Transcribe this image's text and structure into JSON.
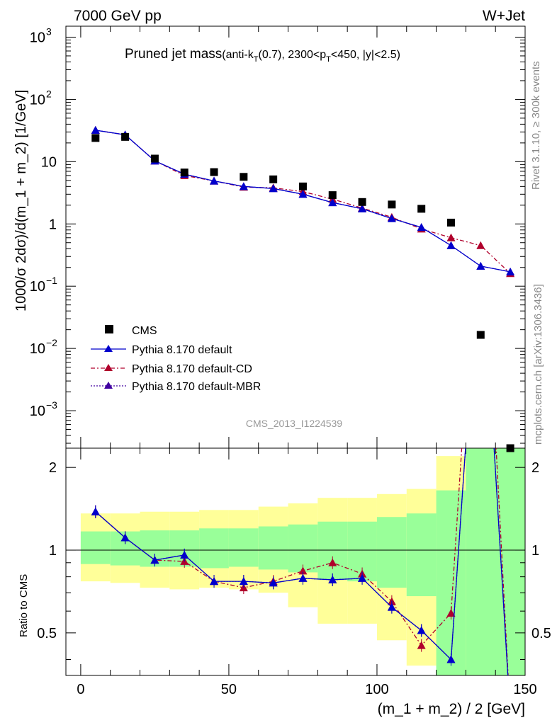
{
  "header": {
    "left": "7000 GeV pp",
    "right": "W+Jet"
  },
  "title": {
    "main": "Pruned jet mass",
    "sub_prefix": "(anti-k",
    "sub_T": "T",
    "sub_mid": "(0.7), 2300<p",
    "sub_T2": "T",
    "sub_suffix": "<450, |y|<2.5)"
  },
  "side_labels": {
    "rivet": "Rivet 3.1.10, ≥ 300k events",
    "mcplots": "mcplots.cern.ch [arXiv:1306.3436]"
  },
  "watermark": "CMS_2013_I1224539",
  "axes": {
    "main_ylabel": "1000/σ 2dσ)/d(m_1 + m_2) [1/GeV]",
    "ratio_ylabel": "Ratio to CMS",
    "xlabel": "(m_1 + m_2) / 2 [GeV]",
    "main_ytick_labels": [
      "10",
      "10",
      "10",
      "10",
      "1",
      "10",
      "10",
      "10"
    ],
    "main_ytick_exps": [
      "3",
      "2",
      "",
      "",
      "",
      "−1",
      "−2",
      "−3"
    ],
    "main_ytick_plain": [
      "",
      "",
      "10",
      "",
      "1",
      "",
      "",
      ""
    ],
    "ratio_ytick_labels": [
      "2",
      "1",
      "0.5"
    ],
    "xtick_labels": [
      "0",
      "50",
      "100",
      "150"
    ]
  },
  "legend": {
    "cms": "CMS",
    "default": "Pythia 8.170 default",
    "cd": "Pythia 8.170 default-CD",
    "mbr": "Pythia 8.170 default-MBR"
  },
  "colors": {
    "default": "#0000cc",
    "cd": "#b0002c",
    "mbr": "#4000a0",
    "band_outer": "#ffff99",
    "band_inner": "#99ff99"
  },
  "chart_data": {
    "type": "line",
    "xlim": [
      -5,
      150
    ],
    "main_ylim": [
      0.00025,
      1500
    ],
    "main_log": true,
    "ratio_ylim": [
      0.35,
      2.35
    ],
    "ratio_log": true,
    "x": [
      5,
      15,
      25,
      35,
      45,
      55,
      65,
      75,
      85,
      95,
      105,
      115,
      125,
      135,
      145
    ],
    "cms": [
      24,
      25,
      11.2,
      6.7,
      6.8,
      5.7,
      5.2,
      4.0,
      2.9,
      2.25,
      2.05,
      1.75,
      1.05,
      0.0165,
      0.00022
    ],
    "series": [
      {
        "name": "Pythia 8.170 default",
        "key": "default",
        "values": [
          32,
          27,
          10.3,
          6.3,
          4.9,
          4.0,
          3.7,
          3.0,
          2.2,
          1.75,
          1.22,
          0.88,
          0.45,
          0.21,
          0.17
        ],
        "ratio": [
          1.38,
          1.11,
          0.92,
          0.96,
          0.77,
          0.77,
          0.76,
          0.79,
          0.78,
          0.79,
          0.62,
          0.51,
          0.4,
          15,
          0.25
        ]
      },
      {
        "name": "Pythia 8.170 default-CD",
        "key": "cd",
        "values": [
          32,
          27,
          10.3,
          6.0,
          4.9,
          3.9,
          3.8,
          3.3,
          2.5,
          1.8,
          1.28,
          0.83,
          0.6,
          0.45,
          0.16
        ],
        "ratio": [
          1.38,
          1.11,
          0.92,
          0.91,
          0.77,
          0.73,
          0.77,
          0.84,
          0.9,
          0.82,
          0.65,
          0.45,
          0.59,
          27,
          0.25
        ]
      },
      {
        "name": "Pythia 8.170 default-MBR",
        "key": "mbr",
        "values": [
          32,
          27,
          10.3,
          6.3,
          4.9,
          4.0,
          3.7,
          3.0,
          2.2,
          1.75,
          1.22,
          0.88,
          0.45,
          0.21,
          0.17
        ],
        "ratio": [
          1.38,
          1.11,
          0.92,
          0.96,
          0.77,
          0.77,
          0.76,
          0.79,
          0.78,
          0.79,
          0.62,
          0.51,
          0.4,
          15,
          0.25
        ]
      }
    ],
    "ratio_bands": [
      {
        "x0": 0,
        "x1": 10,
        "in_lo": 0.89,
        "in_hi": 1.17,
        "out_lo": 0.77,
        "out_hi": 1.36
      },
      {
        "x0": 10,
        "x1": 20,
        "in_lo": 0.88,
        "in_hi": 1.17,
        "out_lo": 0.76,
        "out_hi": 1.36
      },
      {
        "x0": 20,
        "x1": 30,
        "in_lo": 0.87,
        "in_hi": 1.18,
        "out_lo": 0.73,
        "out_hi": 1.38
      },
      {
        "x0": 30,
        "x1": 40,
        "in_lo": 0.87,
        "in_hi": 1.18,
        "out_lo": 0.72,
        "out_hi": 1.38
      },
      {
        "x0": 40,
        "x1": 50,
        "in_lo": 0.86,
        "in_hi": 1.2,
        "out_lo": 0.73,
        "out_hi": 1.4
      },
      {
        "x0": 50,
        "x1": 60,
        "in_lo": 0.87,
        "in_hi": 1.2,
        "out_lo": 0.72,
        "out_hi": 1.4
      },
      {
        "x0": 60,
        "x1": 70,
        "in_lo": 0.85,
        "in_hi": 1.22,
        "out_lo": 0.7,
        "out_hi": 1.44
      },
      {
        "x0": 70,
        "x1": 80,
        "in_lo": 0.83,
        "in_hi": 1.24,
        "out_lo": 0.62,
        "out_hi": 1.48
      },
      {
        "x0": 80,
        "x1": 90,
        "in_lo": 0.78,
        "in_hi": 1.27,
        "out_lo": 0.54,
        "out_hi": 1.55
      },
      {
        "x0": 90,
        "x1": 100,
        "in_lo": 0.77,
        "in_hi": 1.27,
        "out_lo": 0.54,
        "out_hi": 1.55
      },
      {
        "x0": 100,
        "x1": 110,
        "in_lo": 0.73,
        "in_hi": 1.32,
        "out_lo": 0.47,
        "out_hi": 1.6
      },
      {
        "x0": 110,
        "x1": 120,
        "in_lo": 0.68,
        "in_hi": 1.36,
        "out_lo": 0.38,
        "out_hi": 1.67
      },
      {
        "x0": 120,
        "x1": 130,
        "in_lo": 0.35,
        "in_hi": 1.65,
        "out_lo": 0.35,
        "out_hi": 2.2
      },
      {
        "x0": 130,
        "x1": 150,
        "in_lo": 0.35,
        "in_hi": 2.35,
        "out_lo": 0.35,
        "out_hi": 2.35
      }
    ]
  }
}
